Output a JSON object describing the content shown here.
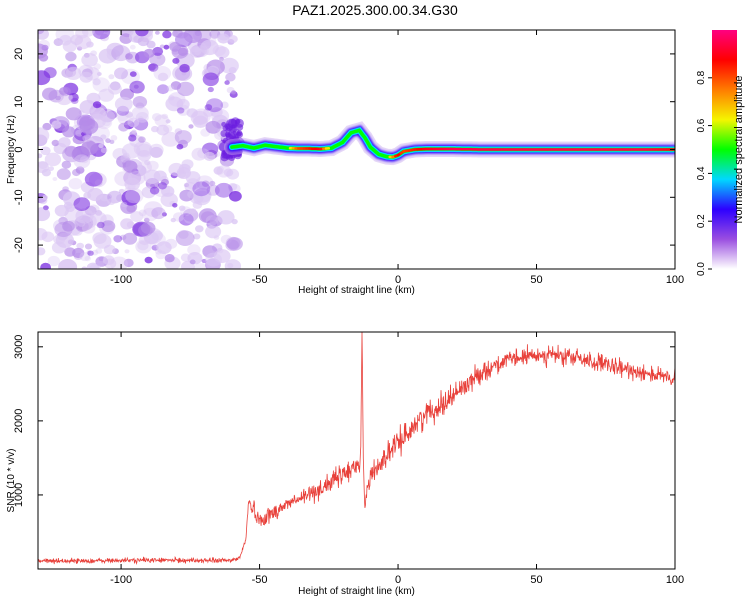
{
  "title": "PAZ1.2025.300.00.34.G30",
  "chart_data": [
    {
      "type": "heatmap",
      "name": "spectrogram",
      "xlabel": "Height of straight line (km)",
      "ylabel": "Frequency (Hz)",
      "xlim": [
        -130,
        100
      ],
      "ylim": [
        -25,
        25
      ],
      "xticks": [
        -100,
        -50,
        0,
        50,
        100
      ],
      "xtick_labels": [
        "-100",
        "-50",
        "0",
        "50",
        "100"
      ],
      "yticks": [
        -20,
        -10,
        0,
        10,
        20
      ],
      "ytick_labels": [
        "-20",
        "-10",
        "0",
        "10",
        "20"
      ],
      "noise_region_x": [
        -130,
        -60
      ],
      "ridge": {
        "x": [
          -60,
          -56,
          -52,
          -48,
          -44,
          -40,
          -36,
          -32,
          -28,
          -24,
          -20,
          -17,
          -14,
          -12,
          -10,
          -7,
          -4,
          -2,
          0,
          2,
          6,
          10,
          20,
          30,
          50,
          70,
          90,
          100
        ],
        "frequency": [
          0.5,
          0.8,
          0.3,
          0.9,
          0.6,
          0.3,
          0.2,
          0.2,
          0.1,
          0.3,
          1.5,
          3.5,
          4.0,
          2.5,
          0.5,
          -1.0,
          -1.5,
          -1.6,
          -1.2,
          -0.4,
          0.0,
          0.1,
          0.1,
          0.0,
          0.0,
          0.0,
          0.0,
          0.0
        ],
        "amplitude": [
          0.45,
          0.55,
          0.5,
          0.6,
          0.5,
          0.55,
          0.8,
          0.85,
          0.9,
          0.5,
          0.4,
          0.45,
          0.45,
          0.4,
          0.4,
          0.5,
          0.55,
          0.7,
          0.9,
          0.8,
          0.85,
          0.9,
          0.95,
          0.95,
          0.95,
          0.95,
          0.95,
          0.9
        ]
      },
      "colorbar": {
        "label": "Normalized spectral amplitude",
        "ticks": [
          0.0,
          0.2,
          0.4,
          0.6,
          0.8
        ],
        "tick_labels": [
          "0.0",
          "0.2",
          "0.4",
          "0.6",
          "0.8"
        ],
        "range": [
          0,
          1
        ],
        "stops": [
          "#ffffff",
          "#9a4ee0",
          "#2d00ff",
          "#00d8ff",
          "#00ff00",
          "#f5f500",
          "#ff7c00",
          "#ff0000",
          "#ff0080"
        ]
      }
    },
    {
      "type": "line",
      "name": "snr",
      "xlabel": "Height of straight line (km)",
      "ylabel": "SNR (10 * v/v)",
      "xlim": [
        -130,
        100
      ],
      "ylim": [
        0,
        3200
      ],
      "xticks": [
        -100,
        -50,
        0,
        50,
        100
      ],
      "xtick_labels": [
        "-100",
        "-50",
        "0",
        "50",
        "100"
      ],
      "yticks": [
        1000,
        2000,
        3000
      ],
      "ytick_labels": [
        "1000",
        "2000",
        "3000"
      ],
      "color": "#e8403a",
      "series": [
        {
          "name": "SNR",
          "x": [
            -130,
            -110,
            -90,
            -70,
            -60,
            -57,
            -55,
            -54,
            -52,
            -50,
            -48,
            -45,
            -40,
            -35,
            -30,
            -25,
            -20,
            -17,
            -15,
            -13.5,
            -13,
            -12.5,
            -12,
            -10,
            -5,
            0,
            5,
            10,
            15,
            20,
            25,
            30,
            35,
            40,
            45,
            50,
            55,
            60,
            65,
            70,
            75,
            80,
            85,
            90,
            95,
            100
          ],
          "y": [
            110,
            110,
            120,
            115,
            115,
            160,
            400,
            900,
            800,
            650,
            700,
            760,
            880,
            950,
            1050,
            1150,
            1280,
            1330,
            1400,
            1500,
            3200,
            1300,
            900,
            1250,
            1500,
            1700,
            1900,
            2100,
            2200,
            2350,
            2500,
            2650,
            2750,
            2820,
            2860,
            2880,
            2900,
            2860,
            2850,
            2800,
            2750,
            2700,
            2680,
            2650,
            2600,
            2550
          ],
          "noise": [
            40,
            40,
            40,
            40,
            40,
            40,
            60,
            120,
            130,
            130,
            130,
            130,
            130,
            140,
            150,
            160,
            170,
            170,
            170,
            170,
            0,
            170,
            170,
            180,
            180,
            190,
            190,
            190,
            190,
            190,
            170,
            160,
            150,
            140,
            140,
            140,
            150,
            150,
            150,
            150,
            150,
            150,
            140,
            140,
            140,
            140
          ]
        }
      ]
    }
  ]
}
